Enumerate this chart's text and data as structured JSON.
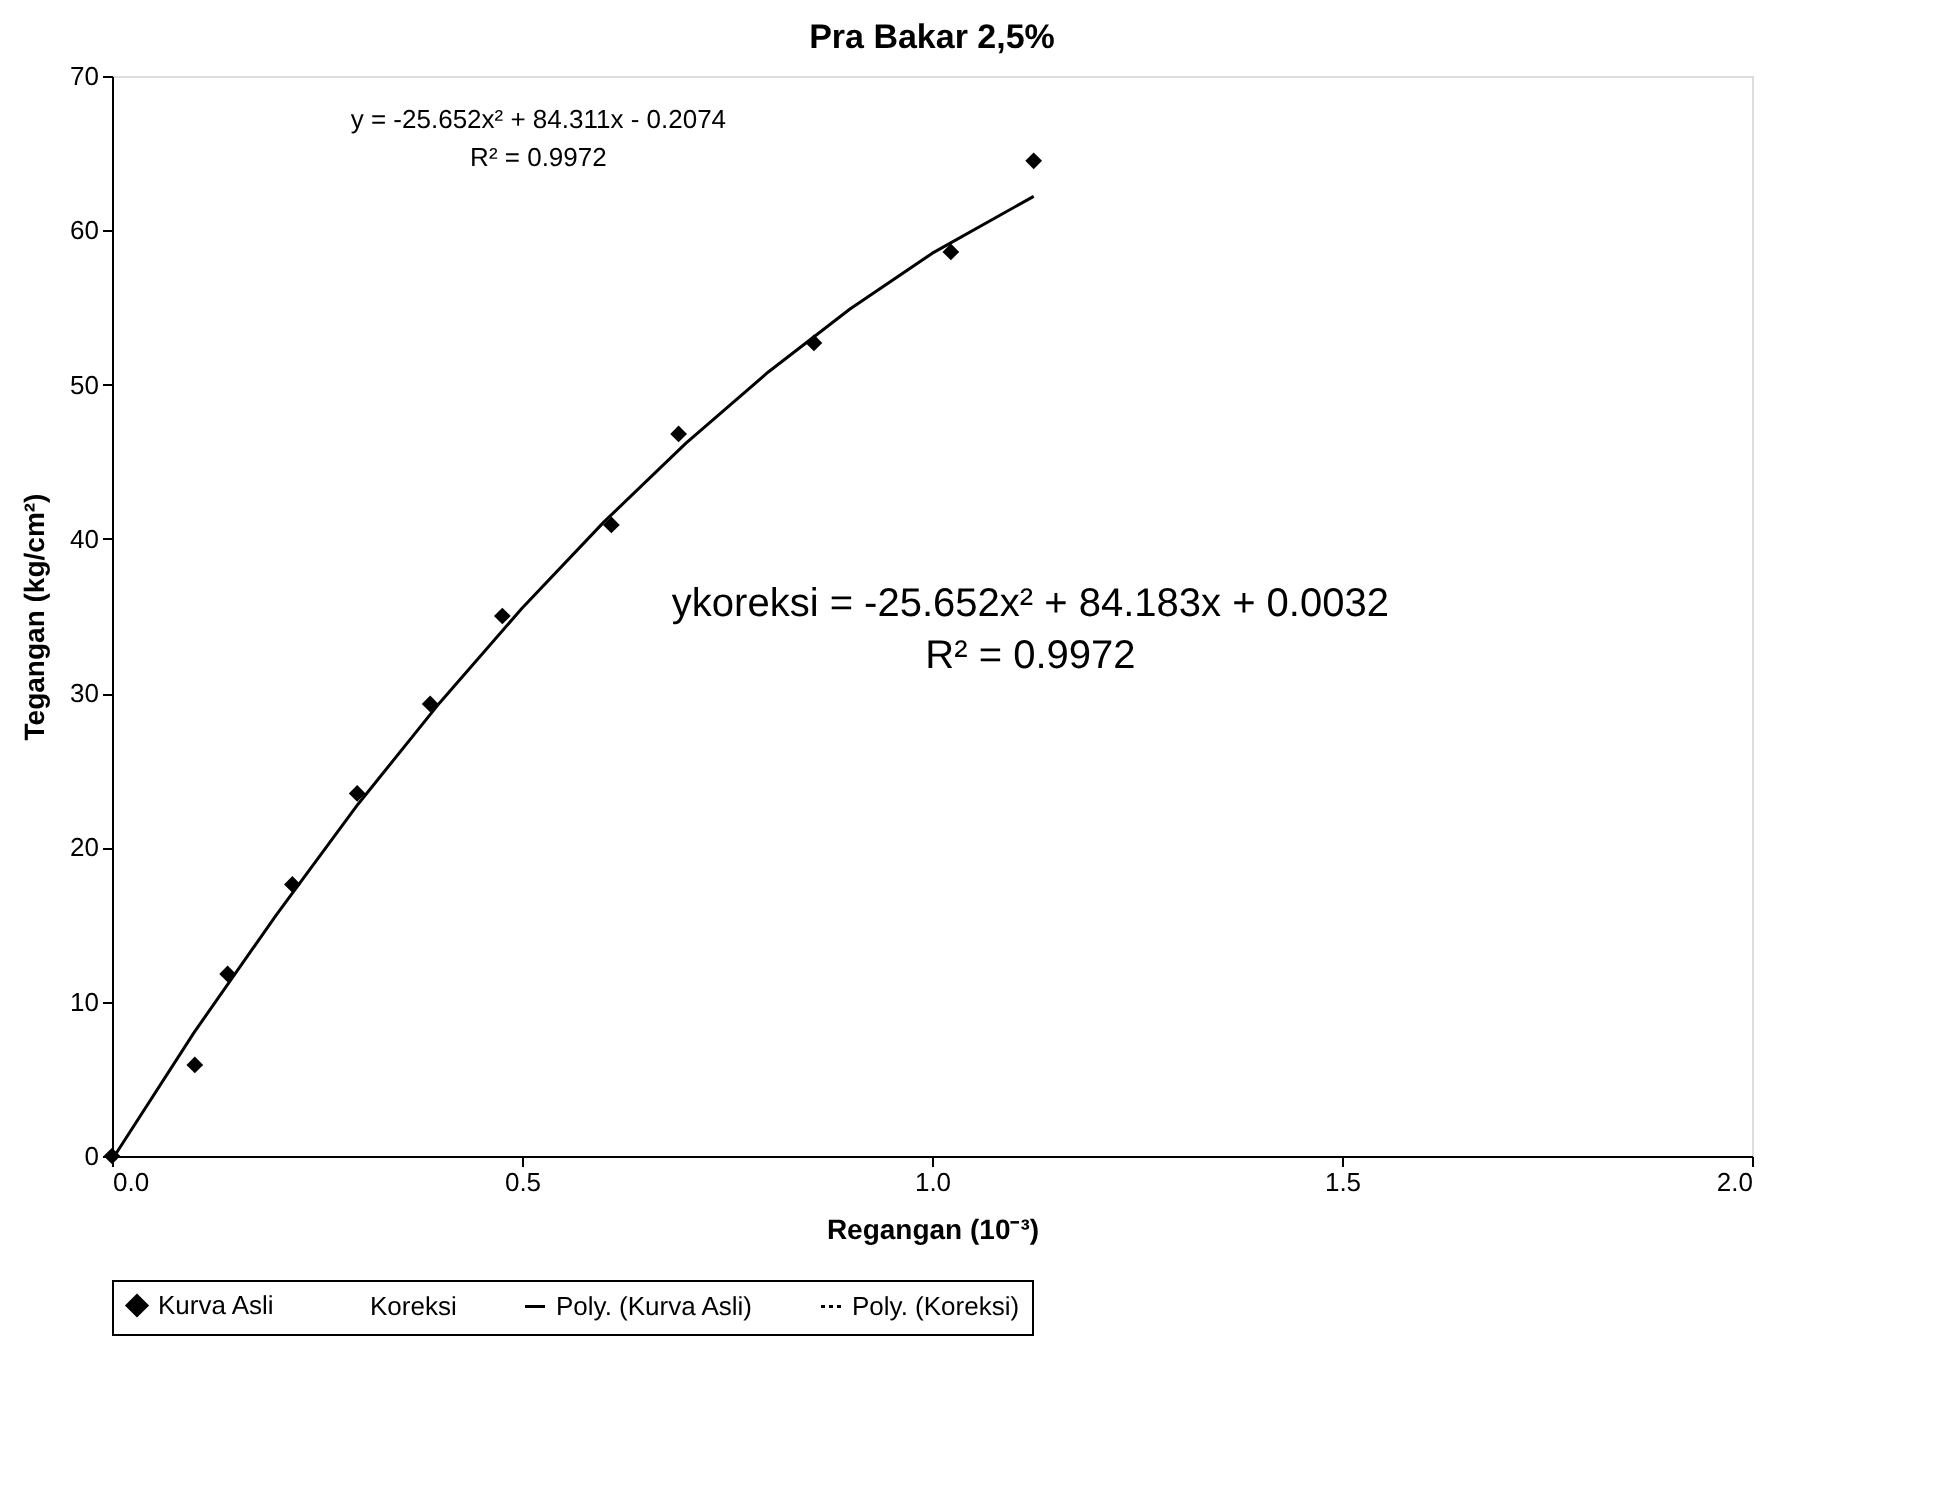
{
  "chart_data": {
    "type": "scatter",
    "title": "Pra Bakar 2,5%",
    "xlabel": "Regangan (10⁻³)",
    "ylabel": "Tegangan (kg/cm²)",
    "xlim": [
      0,
      2
    ],
    "ylim": [
      0,
      70
    ],
    "xticks": [
      {
        "value": 0,
        "label": "0.0"
      },
      {
        "value": 0.5,
        "label": "0.5"
      },
      {
        "value": 1,
        "label": "1.0"
      },
      {
        "value": 1.5,
        "label": "1.5"
      },
      {
        "value": 2,
        "label": "2.0"
      }
    ],
    "yticks": [
      0,
      10,
      20,
      30,
      40,
      50,
      60,
      70
    ],
    "grid": false,
    "legend": "bottom",
    "series": [
      {
        "name": "Kurva Asli",
        "marker": "diamond",
        "color": "#000000",
        "x": [
          0,
          0.101,
          0.141,
          0.22,
          0.299,
          0.388,
          0.476,
          0.609,
          0.691,
          0.856,
          1.023,
          1.124
        ],
        "values": [
          0,
          5.9,
          11.8,
          17.6,
          23.5,
          29.3,
          35.0,
          40.9,
          46.8,
          52.7,
          58.6,
          64.5
        ]
      },
      {
        "name": "Koreksi",
        "type": "scatter",
        "marker": "none",
        "color": "#000000"
      },
      {
        "name": "Poly. (Kurva Asli)",
        "type": "line",
        "line_style": "solid",
        "color": "#000000",
        "x": [
          0.003,
          0.1,
          0.2,
          0.3,
          0.4,
          0.5,
          0.6,
          0.7,
          0.8,
          0.9,
          1.0,
          1.124
        ],
        "values": [
          0.0,
          8.0,
          15.6,
          22.8,
          29.4,
          35.5,
          41.1,
          46.2,
          50.8,
          54.9,
          58.5,
          62.2
        ]
      },
      {
        "name": "Poly. (Koreksi)",
        "type": "line",
        "line_style": "dotted",
        "color": "#000000"
      }
    ],
    "annotations": [
      "y = -25.652x² + 84.311x - 0.2074\nR² = 0.9972",
      "ykoreksi = -25.652x² + 84.183x + 0.0032\nR² = 0.9972"
    ]
  }
}
